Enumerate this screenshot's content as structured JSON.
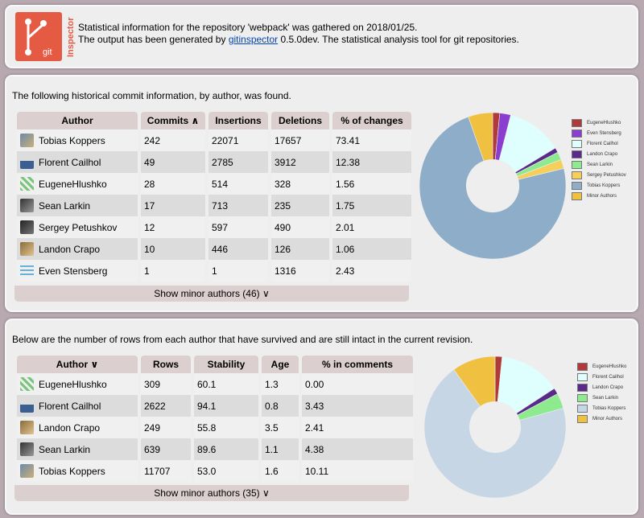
{
  "header": {
    "logo_text": "git",
    "logo_subtitle": "Inspector",
    "line1": "Statistical information for the repository 'webpack' was gathered on 2018/01/25.",
    "line2_prefix": "The output has been generated by ",
    "line2_link": "gitinspector",
    "line2_suffix": " 0.5.0dev. The statistical analysis tool for git repositories."
  },
  "commits": {
    "intro": "The following historical commit information, by author, was found.",
    "columns": [
      "Author",
      "Commits ∧",
      "Insertions",
      "Deletions",
      "% of changes"
    ],
    "rows": [
      {
        "author": "Tobias Koppers",
        "commits": "242",
        "insertions": "22071",
        "deletions": "17657",
        "changes": "73.41"
      },
      {
        "author": "Florent Cailhol",
        "commits": "49",
        "insertions": "2785",
        "deletions": "3912",
        "changes": "12.38"
      },
      {
        "author": "EugeneHlushko",
        "commits": "28",
        "insertions": "514",
        "deletions": "328",
        "changes": "1.56"
      },
      {
        "author": "Sean Larkin",
        "commits": "17",
        "insertions": "713",
        "deletions": "235",
        "changes": "1.75"
      },
      {
        "author": "Sergey Petushkov",
        "commits": "12",
        "insertions": "597",
        "deletions": "490",
        "changes": "2.01"
      },
      {
        "author": "Landon Crapo",
        "commits": "10",
        "insertions": "446",
        "deletions": "126",
        "changes": "1.06"
      },
      {
        "author": "Even Stensberg",
        "commits": "1",
        "insertions": "1",
        "deletions": "1316",
        "changes": "2.43"
      }
    ],
    "more_button": "Show minor authors (46) ∨"
  },
  "blame": {
    "intro": "Below are the number of rows from each author that have survived and are still intact in the current revision.",
    "columns": [
      "Author ∨",
      "Rows",
      "Stability",
      "Age",
      "% in comments"
    ],
    "rows": [
      {
        "author": "EugeneHlushko",
        "rows": "309",
        "stability": "60.1",
        "age": "1.3",
        "comments": "0.00"
      },
      {
        "author": "Florent Cailhol",
        "rows": "2622",
        "stability": "94.1",
        "age": "0.8",
        "comments": "3.43"
      },
      {
        "author": "Landon Crapo",
        "rows": "249",
        "stability": "55.8",
        "age": "3.5",
        "comments": "2.41"
      },
      {
        "author": "Sean Larkin",
        "rows": "639",
        "stability": "89.6",
        "age": "1.1",
        "comments": "4.38"
      },
      {
        "author": "Tobias Koppers",
        "rows": "11707",
        "stability": "53.0",
        "age": "1.6",
        "comments": "10.11"
      }
    ],
    "more_button": "Show minor authors (35) ∨"
  },
  "chart_data": [
    {
      "type": "pie",
      "categories": [
        "EugeneHlushko",
        "Even Stensberg",
        "Florent Cailhol",
        "Landon Crapo",
        "Sean Larkin",
        "Sergey Petushkov",
        "Tobias Koppers",
        "Minor Authors"
      ],
      "values": [
        1.56,
        2.43,
        12.38,
        1.06,
        1.75,
        2.01,
        73.41,
        5.4
      ],
      "colors": [
        "#b03a3a",
        "#8a3ecf",
        "#dfffff",
        "#5a2a8a",
        "#8eea8e",
        "#f5cf5a",
        "#8eadc8",
        "#f0c040"
      ],
      "legend": "right"
    },
    {
      "type": "pie",
      "categories": [
        "EugeneHlushko",
        "Florent Cailhol",
        "Landon Crapo",
        "Sean Larkin",
        "Tobias Koppers",
        "Minor Authors"
      ],
      "values": [
        1.6,
        14.2,
        1.4,
        3.5,
        69.4,
        9.9
      ],
      "colors": [
        "#b03a3a",
        "#dfffff",
        "#5a2a8a",
        "#8eea8e",
        "#c6d6e4",
        "#f0c040"
      ],
      "legend": "right"
    }
  ],
  "colors": {
    "background": "#b8a9b1",
    "panel": "#eeeeee",
    "header_cell": "#dccfd0",
    "logo": "#e55a43",
    "link": "#0645ad"
  },
  "icons": {
    "avatar_types": [
      "photo-avatar",
      "identicon-avatar",
      "wave-avatar"
    ]
  }
}
